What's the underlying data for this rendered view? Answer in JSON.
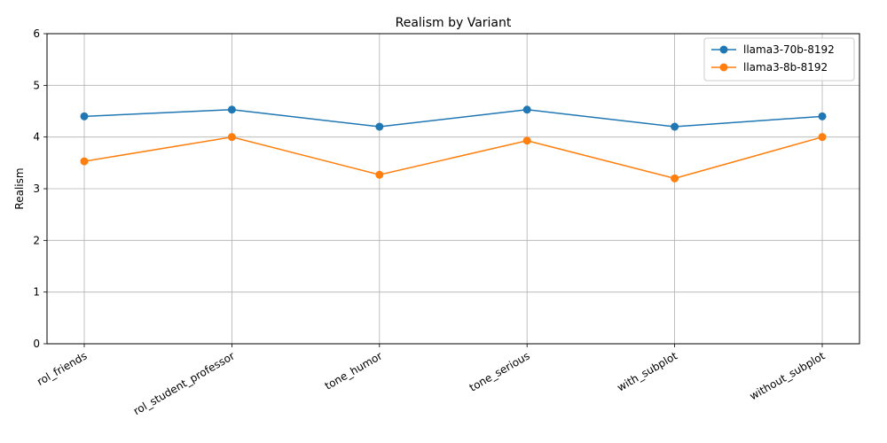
{
  "chart_data": {
    "type": "line",
    "title": "Realism by Variant",
    "xlabel": "",
    "ylabel": "Realism",
    "ylim": [
      0,
      6
    ],
    "yticks": [
      0,
      1,
      2,
      3,
      4,
      5,
      6
    ],
    "categories": [
      "rol_friends",
      "rol_student_professor",
      "tone_humor",
      "tone_serious",
      "with_subplot",
      "without_subplot"
    ],
    "series": [
      {
        "name": "llama3-70b-8192",
        "color": "#1f77b4",
        "values": [
          4.4,
          4.53,
          4.2,
          4.53,
          4.2,
          4.4
        ]
      },
      {
        "name": "llama3-8b-8192",
        "color": "#ff7f0e",
        "values": [
          3.53,
          4.0,
          3.27,
          3.93,
          3.2,
          4.0
        ]
      }
    ],
    "grid": true,
    "legend_position": "top-right",
    "marker": "circle"
  }
}
